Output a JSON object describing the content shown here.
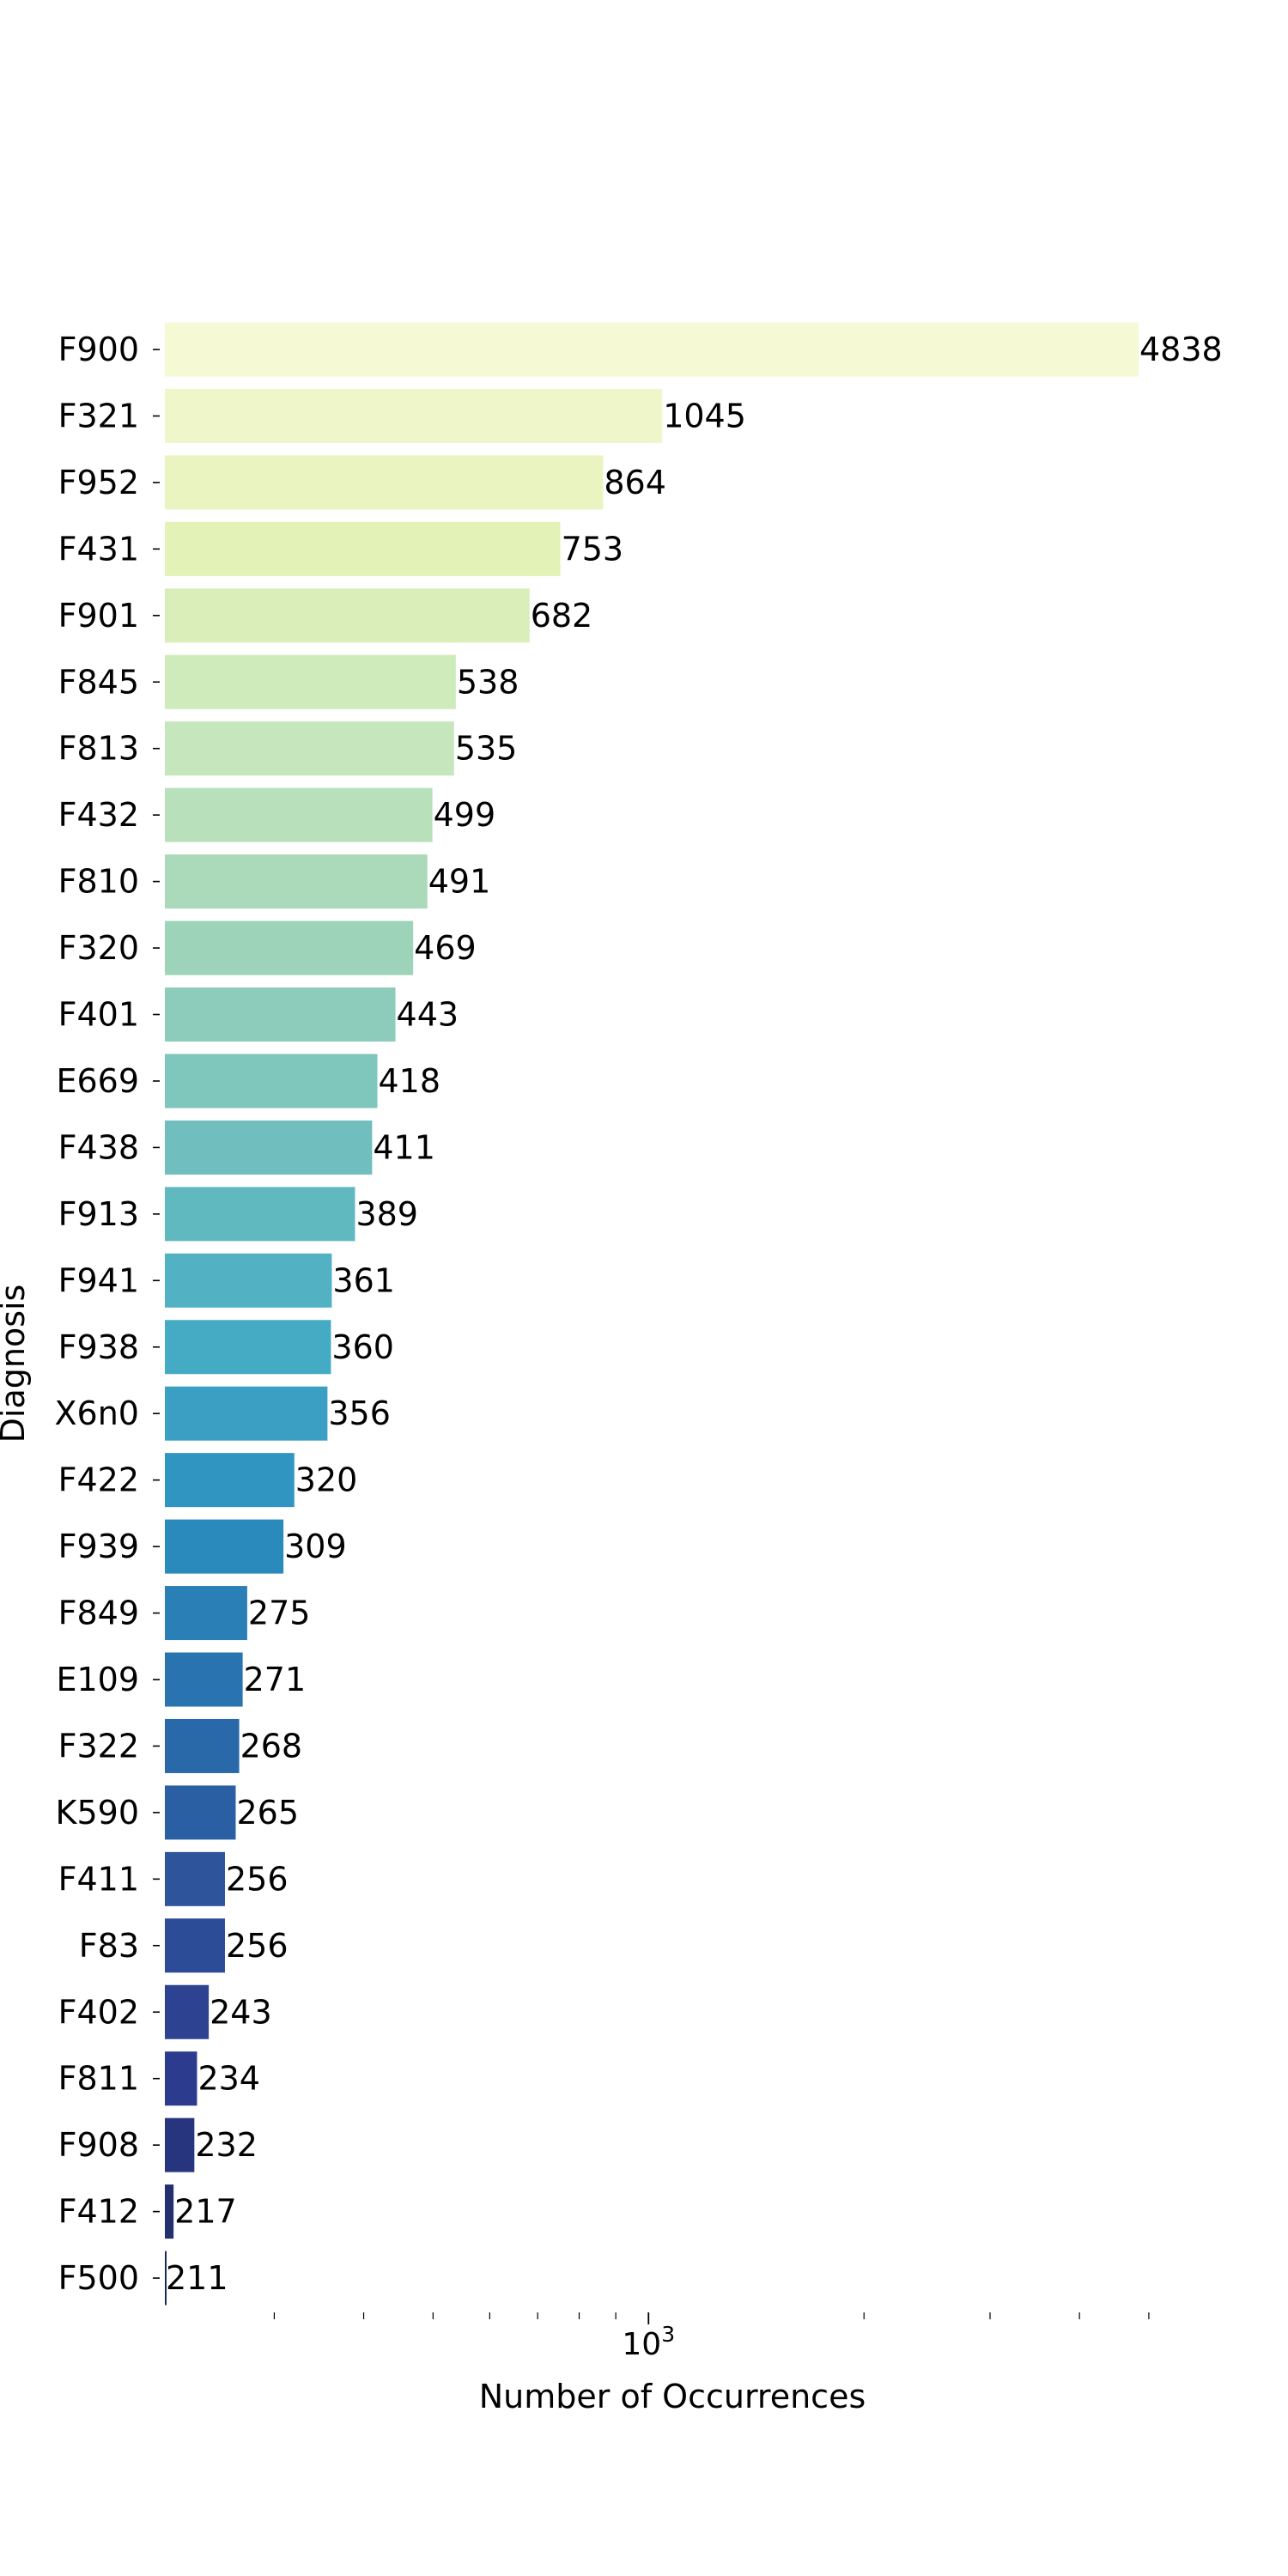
{
  "chart_data": {
    "type": "bar",
    "orientation": "horizontal",
    "xscale": "log",
    "xlim": [
      211,
      4838
    ],
    "xlabel": "Number of Occurrences",
    "ylabel": "Diagnosis",
    "major_tick_label": {
      "base": "10",
      "exponent": "3"
    },
    "grid": false,
    "colormap": "YlGnBu",
    "color_range": [
      "#f4f8d3",
      "#1c2a60"
    ],
    "categories": [
      "F900",
      "F321",
      "F952",
      "F431",
      "F901",
      "F845",
      "F813",
      "F432",
      "F810",
      "F320",
      "F401",
      "E669",
      "F438",
      "F913",
      "F941",
      "F938",
      "X6n0",
      "F422",
      "F939",
      "F849",
      "E109",
      "F322",
      "K590",
      "F411",
      "F83",
      "F402",
      "F811",
      "F908",
      "F412",
      "F500"
    ],
    "values": [
      4838,
      1045,
      864,
      753,
      682,
      538,
      535,
      499,
      491,
      469,
      443,
      418,
      411,
      389,
      361,
      360,
      356,
      320,
      309,
      275,
      271,
      268,
      265,
      256,
      256,
      243,
      234,
      232,
      217,
      211
    ]
  }
}
